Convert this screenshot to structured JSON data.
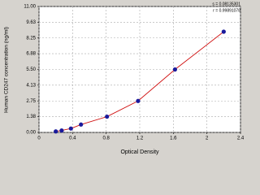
{
  "chart_data": {
    "type": "scatter",
    "xlabel": "Optical Density",
    "ylabel": "Human CD247 concentration (ng/ml)",
    "annotations": [
      "s = 0.08135301",
      "r = 0.99891078"
    ],
    "series": [
      {
        "color": "#1a1a9c",
        "line_color": "#d01010",
        "x": [
          0.2,
          0.27,
          0.38,
          0.5,
          0.81,
          1.18,
          1.62,
          2.2
        ],
        "values": [
          0.09,
          0.17,
          0.34,
          0.69,
          1.38,
          2.75,
          5.5,
          8.8
        ]
      }
    ],
    "xlim": [
      0,
      2.4
    ],
    "xticks": [
      0,
      0.4,
      0.8,
      1.2,
      1.6,
      2,
      2.4
    ],
    "ylim": [
      0,
      11
    ],
    "yticks": [
      {
        "value": 0,
        "label": "0.00"
      },
      1.38,
      2.75,
      4.13,
      {
        "value": 5.5,
        "label": "5.50"
      },
      6.88,
      8.25,
      9.63,
      {
        "value": 11,
        "label": "11.00"
      }
    ],
    "grid": true
  }
}
